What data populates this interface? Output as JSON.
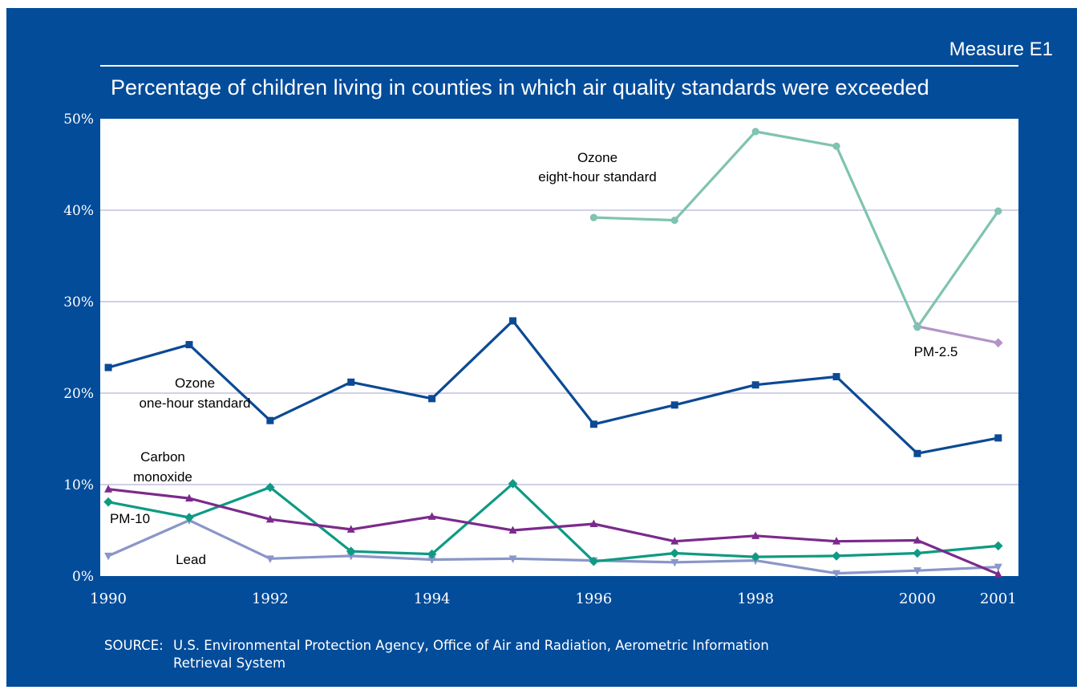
{
  "header": {
    "measure": "Measure E1",
    "title": "Percentage of children living in counties in which air quality standards were exceeded"
  },
  "source": {
    "label": "SOURCE:",
    "line1": "U.S. Environmental Protection Agency, Office of Air and Radiation, Aerometric Information",
    "line2": "Retrieval System"
  },
  "colors": {
    "background": "#034c9a",
    "plot_area": "#ffffff",
    "grid": "#b3b3d9"
  },
  "chart_data": {
    "type": "line",
    "title": "Percentage of children living in counties in which air quality standards were exceeded",
    "xlabel": "",
    "ylabel": "",
    "xlim": [
      1989.9,
      2001.25
    ],
    "ylim": [
      0,
      50
    ],
    "grid": true,
    "x_tick_labels": [
      "1990",
      "1992",
      "1994",
      "1996",
      "1998",
      "2000",
      "2001"
    ],
    "x_ticks": [
      1990,
      1992,
      1994,
      1996,
      1998,
      2000,
      2001
    ],
    "y_tick_labels": [
      "0%",
      "10%",
      "20%",
      "30%",
      "40%",
      "50%"
    ],
    "y_ticks": [
      0,
      10,
      20,
      30,
      40,
      50
    ],
    "series": [
      {
        "name": "Ozone eight-hour standard",
        "label_lines": [
          "Ozone",
          "eight-hour standard"
        ],
        "color": "#7fc3b1",
        "marker": "circle",
        "x": [
          1996,
          1997,
          1998,
          1999,
          2000,
          2001
        ],
        "values": [
          39.2,
          38.9,
          48.6,
          47.0,
          27.2,
          39.9
        ]
      },
      {
        "name": "Ozone one-hour standard",
        "label_lines": [
          "Ozone",
          "one-hour standard"
        ],
        "color": "#0b4a94",
        "marker": "square",
        "x": [
          1990,
          1991,
          1992,
          1993,
          1994,
          1995,
          1996,
          1997,
          1998,
          1999,
          2000,
          2001
        ],
        "values": [
          22.8,
          25.3,
          17.0,
          21.2,
          19.4,
          27.9,
          16.6,
          18.7,
          20.9,
          21.8,
          13.4,
          15.1
        ]
      },
      {
        "name": "PM-2.5",
        "label_lines": [
          "PM-2.5"
        ],
        "color": "#b393c7",
        "marker": "diamond",
        "x": [
          2000,
          2001
        ],
        "values": [
          27.3,
          25.5
        ]
      },
      {
        "name": "Carbon monoxide",
        "label_lines": [
          "Carbon",
          "monoxide"
        ],
        "color": "#7b2a8c",
        "marker": "triangle-up",
        "x": [
          1990,
          1991,
          1992,
          1993,
          1994,
          1995,
          1996,
          1997,
          1998,
          1999,
          2000,
          2001
        ],
        "values": [
          9.5,
          8.5,
          6.2,
          5.1,
          6.5,
          5.0,
          5.7,
          3.8,
          4.4,
          3.8,
          3.9,
          0.2
        ]
      },
      {
        "name": "PM-10",
        "label_lines": [
          "PM-10"
        ],
        "color": "#0e9a83",
        "marker": "diamond",
        "x": [
          1990,
          1991,
          1992,
          1993,
          1994,
          1995,
          1996,
          1997,
          1998,
          1999,
          2000,
          2001
        ],
        "values": [
          8.1,
          6.4,
          9.7,
          2.7,
          2.4,
          10.1,
          1.6,
          2.5,
          2.1,
          2.2,
          2.5,
          3.3
        ]
      },
      {
        "name": "Lead",
        "label_lines": [
          "Lead"
        ],
        "color": "#8a96c8",
        "marker": "triangle-down",
        "x": [
          1990,
          1991,
          1992,
          1993,
          1994,
          1995,
          1996,
          1997,
          1998,
          1999,
          2000,
          2001
        ],
        "values": [
          2.2,
          6.1,
          1.9,
          2.2,
          1.8,
          1.9,
          1.7,
          1.5,
          1.7,
          0.3,
          0.6,
          1.0
        ]
      }
    ]
  }
}
